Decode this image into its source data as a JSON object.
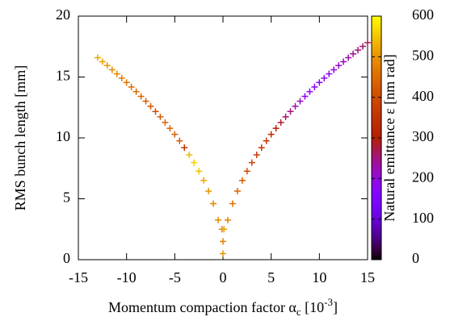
{
  "chart_data": {
    "type": "scatter",
    "xlabel": [
      "Momentum compaction factor α",
      "c",
      " [10",
      "-3",
      "]"
    ],
    "ylabel": "RMS bunch length [mm]",
    "xlim": [
      -15,
      15
    ],
    "xticks": [
      -15,
      -10,
      -5,
      0,
      5,
      10,
      15
    ],
    "ylim": [
      0,
      20
    ],
    "yticks": [
      0,
      5,
      10,
      15,
      20
    ],
    "colorbar": {
      "label": "Natural emittance ε [nm rad]",
      "lim": [
        0,
        600
      ],
      "ticks": [
        0,
        100,
        200,
        300,
        400,
        500,
        600
      ]
    },
    "x": [
      -13,
      -12.5,
      -12,
      -11.5,
      -11,
      -10.5,
      -10,
      -9.5,
      -9,
      -8.5,
      -8,
      -7.5,
      -7,
      -6.5,
      -6,
      -5.5,
      -5,
      -4.5,
      -4,
      -3.5,
      -3,
      -2.5,
      -2,
      -1.5,
      -1,
      -0.5,
      0,
      0,
      -0.1,
      0.1,
      0.5,
      1,
      1.5,
      2,
      2.5,
      3,
      3.5,
      4,
      4.5,
      5,
      5.5,
      6,
      6.5,
      7,
      7.5,
      8,
      8.5,
      9,
      9.5,
      10,
      10.5,
      11,
      11.5,
      12,
      12.5,
      13,
      13.5,
      14,
      14.5,
      15
    ],
    "y": [
      16.59,
      16.26,
      15.94,
      15.6,
      15.26,
      14.91,
      14.55,
      14.18,
      13.8,
      13.41,
      13.01,
      12.6,
      12.17,
      11.73,
      11.27,
      10.79,
      10.29,
      9.76,
      9.2,
      8.61,
      7.97,
      7.27,
      6.51,
      5.63,
      4.6,
      3.25,
      0.5,
      1.5,
      2.5,
      2.5,
      3.25,
      4.6,
      5.63,
      6.51,
      7.27,
      7.97,
      8.61,
      9.2,
      9.76,
      10.29,
      10.79,
      11.27,
      11.73,
      12.17,
      12.6,
      13.01,
      13.41,
      13.8,
      14.18,
      14.55,
      14.91,
      15.26,
      15.6,
      15.94,
      16.26,
      16.59,
      16.9,
      17.21,
      17.52,
      17.82
    ],
    "c": [
      520,
      510,
      500,
      490,
      480,
      470,
      460,
      450,
      440,
      440,
      430,
      420,
      400,
      430,
      440,
      440,
      430,
      420,
      350,
      540,
      560,
      550,
      520,
      500,
      480,
      490,
      500,
      480,
      470,
      510,
      480,
      460,
      440,
      420,
      400,
      380,
      370,
      360,
      350,
      330,
      300,
      280,
      260,
      250,
      230,
      210,
      180,
      170,
      160,
      170,
      180,
      190,
      200,
      210,
      220,
      230,
      240,
      250,
      260,
      270
    ]
  }
}
